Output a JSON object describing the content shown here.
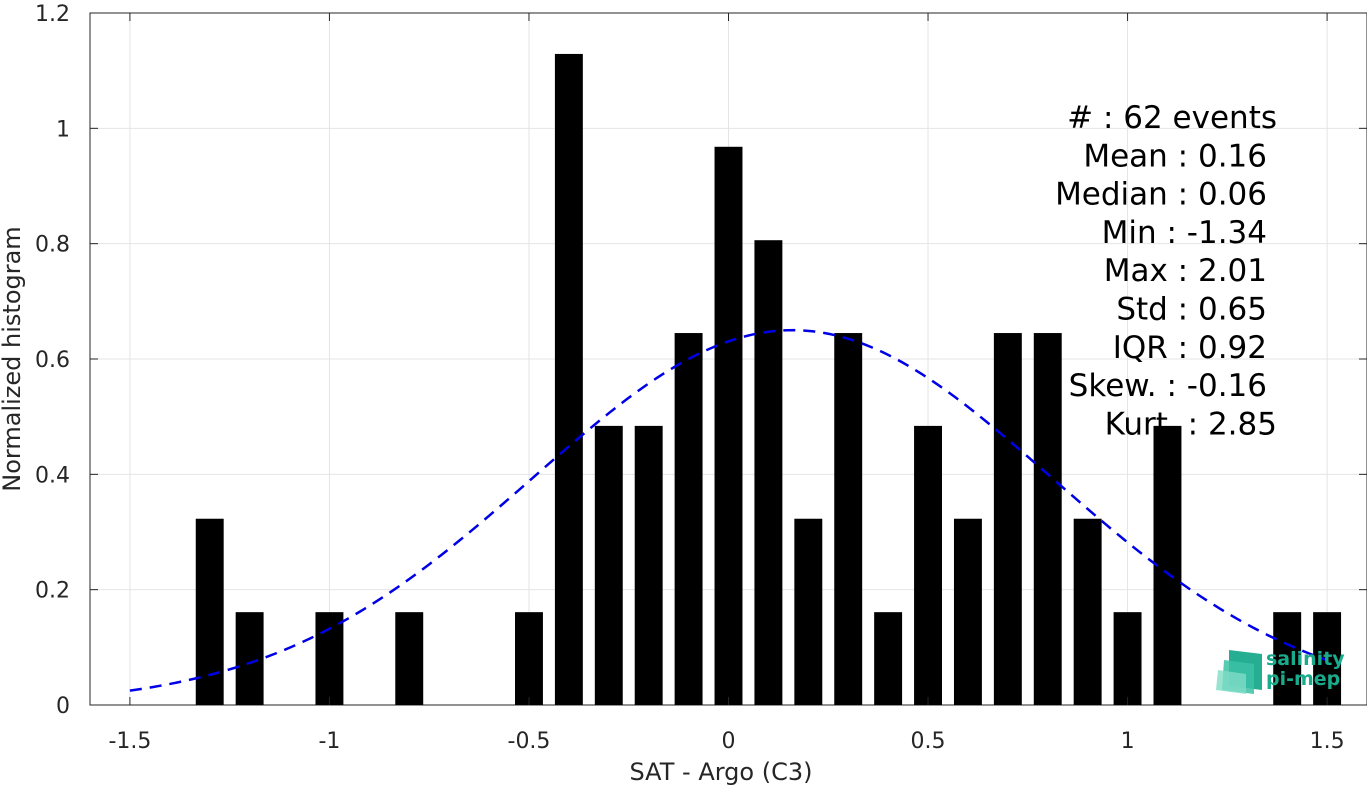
{
  "chart_data": {
    "type": "bar",
    "xlabel": "SAT - Argo (C3)",
    "ylabel": "Normalized histogram",
    "xlim": [
      -1.6,
      1.6
    ],
    "ylim": [
      0,
      1.2
    ],
    "x_ticks": [
      -1.5,
      -1,
      -0.5,
      0,
      0.5,
      1,
      1.5
    ],
    "x_tick_labels": [
      "-1.5",
      "-1",
      "-0.5",
      "0",
      "0.5",
      "1",
      "1.5"
    ],
    "y_ticks": [
      0,
      0.2,
      0.4,
      0.6,
      0.8,
      1,
      1.2
    ],
    "y_tick_labels": [
      "0",
      "0.2",
      "0.4",
      "0.6",
      "0.8",
      "1",
      "1.2"
    ],
    "grid": true,
    "bar_width": 0.07,
    "bars": {
      "x": [
        -1.3,
        -1.2,
        -1.0,
        -0.8,
        -0.5,
        -0.4,
        -0.3,
        -0.2,
        -0.1,
        0.0,
        0.1,
        0.2,
        0.3,
        0.4,
        0.5,
        0.6,
        0.7,
        0.8,
        0.9,
        1.0,
        1.1,
        1.4,
        1.5
      ],
      "values": [
        0.323,
        0.161,
        0.161,
        0.161,
        0.161,
        1.129,
        0.484,
        0.484,
        0.645,
        0.968,
        0.806,
        0.323,
        0.645,
        0.161,
        0.484,
        0.323,
        0.645,
        0.645,
        0.323,
        0.161,
        0.484,
        0.161,
        0.161
      ],
      "color": "#000000"
    },
    "fit_curve": {
      "kind": "normal",
      "mean": 0.16,
      "std": 0.65,
      "amplitude": 0.65,
      "x_range": [
        -1.5,
        1.5
      ],
      "color": "#0000e6",
      "style": "dashed"
    },
    "stats": [
      "#  : 62 events",
      "Mean : 0.16",
      "Median : 0.06",
      "Min : -1.34",
      "Max : 2.01",
      "Std : 0.65",
      "IQR : 0.92",
      "Skew. : -0.16",
      "Kurt. : 2.85"
    ],
    "logo": {
      "line1": "salinity",
      "line2": "pi-mep"
    }
  }
}
